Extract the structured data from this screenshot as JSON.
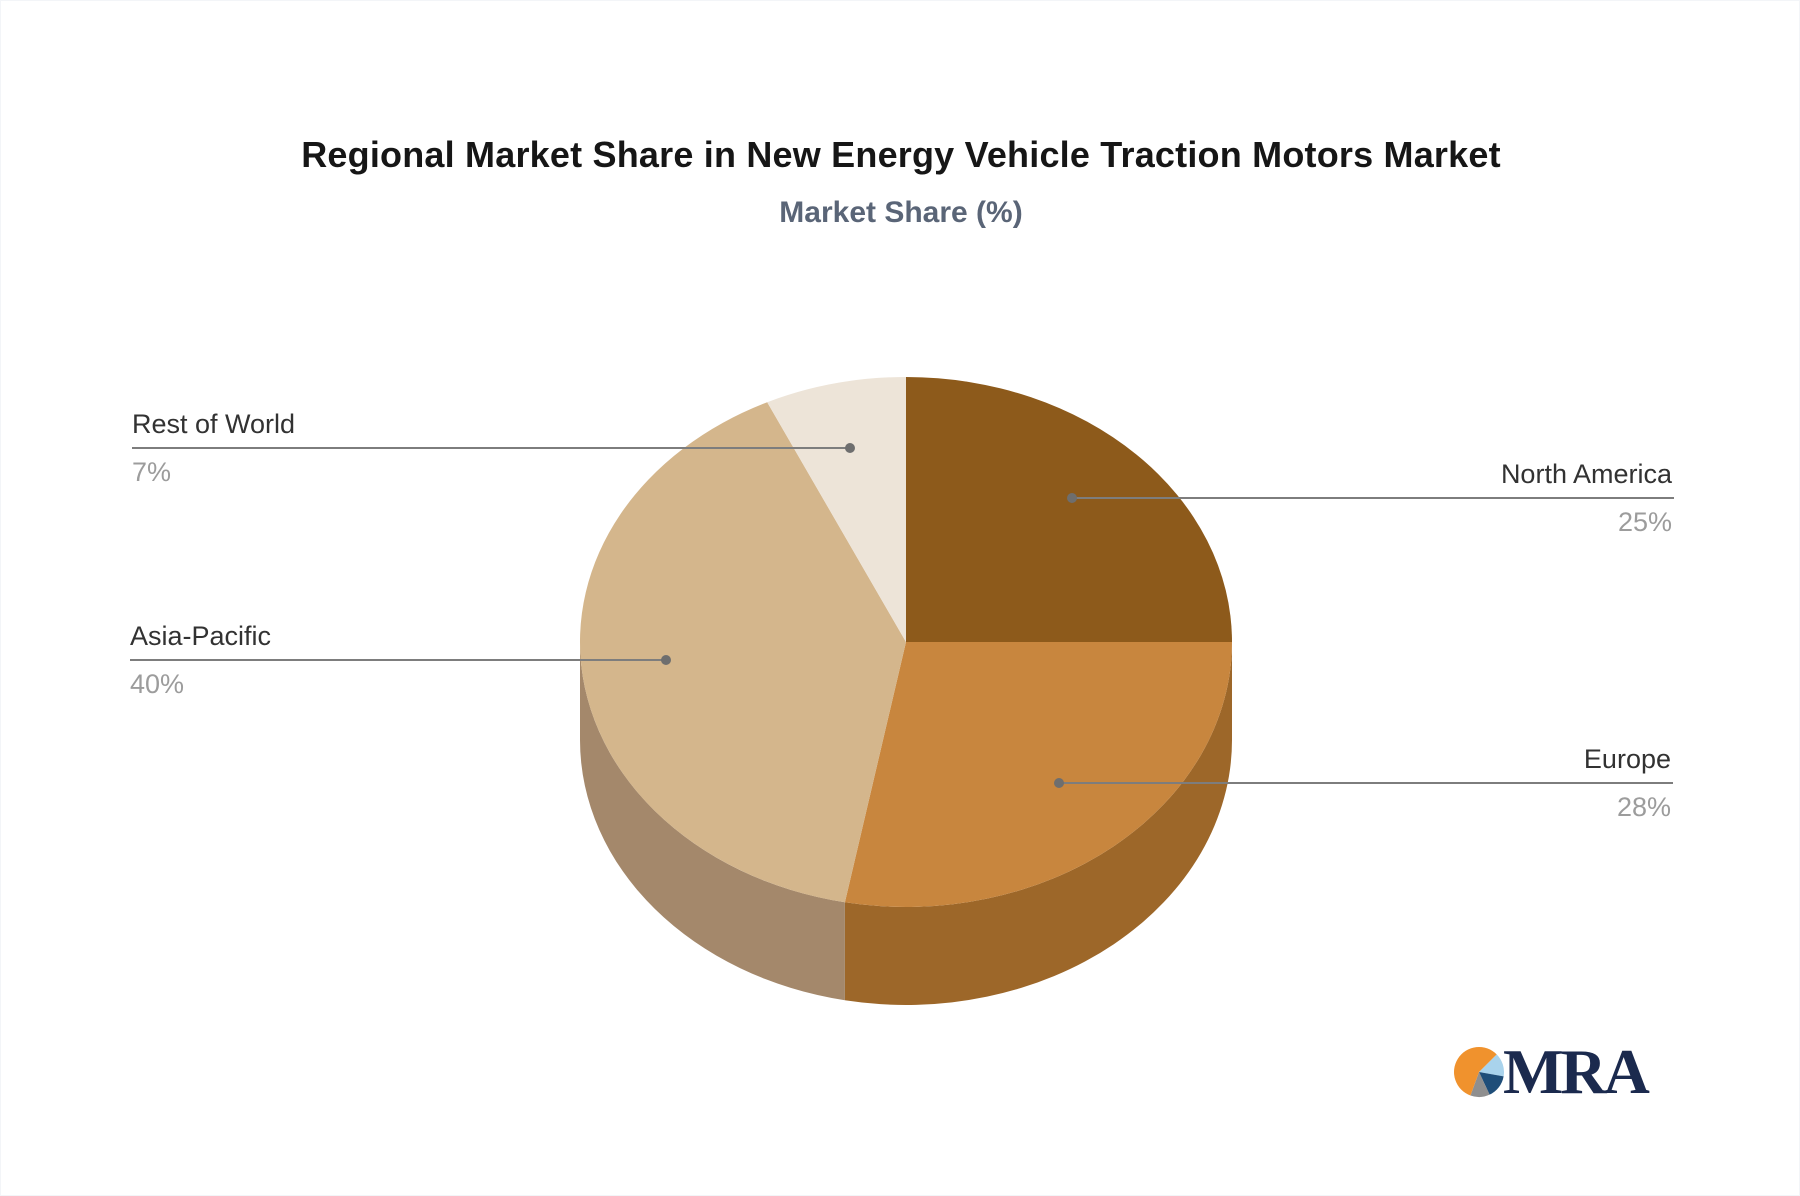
{
  "header": {
    "title": "Regional Market Share in New Energy Vehicle Traction Motors Market",
    "subtitle": "Market Share (%)"
  },
  "chart_data": {
    "type": "pie",
    "style": "3d",
    "title": "Regional Market Share in New Energy Vehicle Traction Motors Market",
    "subtitle": "Market Share (%)",
    "unit": "%",
    "start_angle_deg": 0,
    "direction": "clockwise",
    "categories": [
      "North America",
      "Europe",
      "Asia-Pacific",
      "Rest of World"
    ],
    "values": [
      25,
      28,
      40,
      7
    ],
    "slices": [
      {
        "label": "North America",
        "value": 25,
        "display": "25%",
        "color": "#8D5A1B",
        "side_color": "#9D6729"
      },
      {
        "label": "Europe",
        "value": 28,
        "display": "28%",
        "color": "#C8863E",
        "side_color": "#9D6729"
      },
      {
        "label": "Asia-Pacific",
        "value": 40,
        "display": "40%",
        "color": "#D4B68C",
        "side_color": "#A4886B"
      },
      {
        "label": "Rest of World",
        "value": 7,
        "display": "7%",
        "color": "#EDE4D8",
        "side_color": "#C9BBA8"
      }
    ],
    "legend": "callout-labels",
    "colors": {
      "leader_line": "#7d7d7d",
      "leader_dot": "#6e6e6e",
      "label_text": "#323232",
      "value_text": "#9c9c9c"
    }
  },
  "logo": {
    "text": "MRA",
    "text_color": "#1B2A4E",
    "icon_segments": [
      {
        "from": 45,
        "to": 100,
        "color": "#A9D3EC"
      },
      {
        "from": 100,
        "to": 155,
        "color": "#1F4E79"
      },
      {
        "from": 155,
        "to": 200,
        "color": "#8F8F8F"
      },
      {
        "from": 200,
        "to": 405,
        "color": "#F0922D"
      }
    ]
  }
}
